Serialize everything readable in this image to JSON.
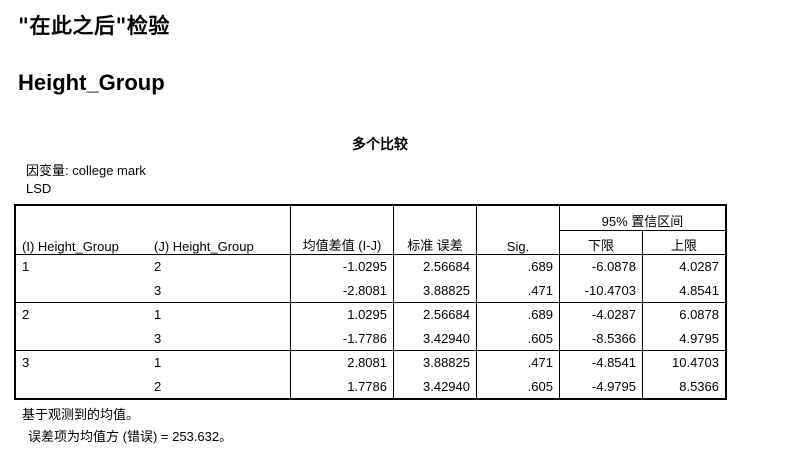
{
  "page_title": "\"在此之后\"检验",
  "section_title": "Height_Group",
  "table": {
    "caption": "多个比较",
    "dependent_variable": "因变量: college mark",
    "method": "LSD",
    "ci_header": "95% 置信区间",
    "headers": {
      "i_group": "(I) Height_Group",
      "j_group": "(J) Height_Group",
      "mean_diff": "均值差值 (I-J)",
      "std_error": "标准 误差",
      "sig": "Sig.",
      "lower": "下限",
      "upper": "上限"
    },
    "rows": [
      {
        "i": "1",
        "j": "2",
        "mean_diff": "-1.0295",
        "std_error": "2.56684",
        "sig": ".689",
        "lower": "-6.0878",
        "upper": "4.0287"
      },
      {
        "i": "",
        "j": "3",
        "mean_diff": "-2.8081",
        "std_error": "3.88825",
        "sig": ".471",
        "lower": "-10.4703",
        "upper": "4.8541"
      },
      {
        "i": "2",
        "j": "1",
        "mean_diff": "1.0295",
        "std_error": "2.56684",
        "sig": ".689",
        "lower": "-4.0287",
        "upper": "6.0878"
      },
      {
        "i": "",
        "j": "3",
        "mean_diff": "-1.7786",
        "std_error": "3.42940",
        "sig": ".605",
        "lower": "-8.5366",
        "upper": "4.9795"
      },
      {
        "i": "3",
        "j": "1",
        "mean_diff": "2.8081",
        "std_error": "3.88825",
        "sig": ".471",
        "lower": "-4.8541",
        "upper": "10.4703"
      },
      {
        "i": "",
        "j": "2",
        "mean_diff": "1.7786",
        "std_error": "3.42940",
        "sig": ".605",
        "lower": "-4.9795",
        "upper": "8.5366"
      }
    ]
  },
  "footnotes": {
    "based_on": "基于观测到的均值。",
    "error_term": "误差项为均值方 (错误) = 253.632。"
  }
}
